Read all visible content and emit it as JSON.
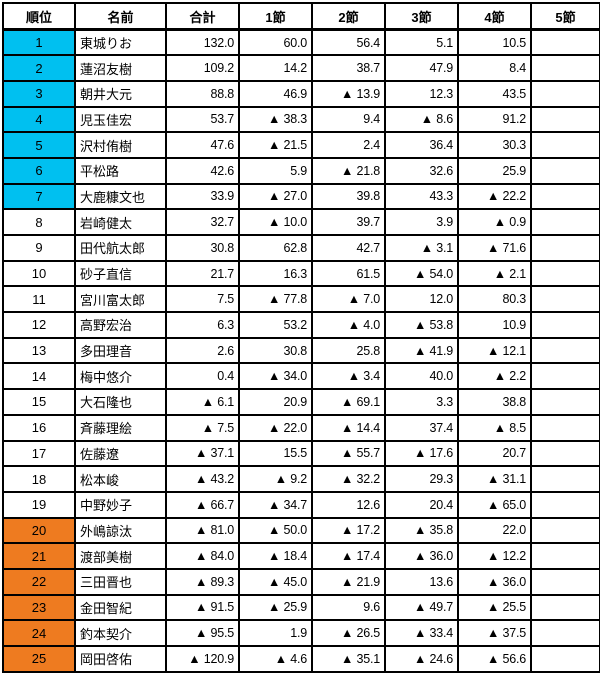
{
  "table": {
    "headers": [
      "順位",
      "名前",
      "合計",
      "1節",
      "2節",
      "3節",
      "4節",
      "5節"
    ],
    "colors": {
      "rank_top_band": "#00C0F0",
      "rank_mid_band": "#FFFFFF",
      "rank_bottom_band": "#EE7B20",
      "grid_border": "#000000",
      "cell_background": "#FFFFFF"
    },
    "negative_marker": "▲",
    "rows": [
      {
        "rank": "1",
        "name": "東城りお",
        "values": [
          "132.0",
          "60.0",
          "56.4",
          "5.1",
          "10.5",
          ""
        ],
        "band": "top"
      },
      {
        "rank": "2",
        "name": "蓮沼友樹",
        "values": [
          "109.2",
          "14.2",
          "38.7",
          "47.9",
          "8.4",
          ""
        ],
        "band": "top"
      },
      {
        "rank": "3",
        "name": "朝井大元",
        "values": [
          "88.8",
          "46.9",
          "▲ 13.9",
          "12.3",
          "43.5",
          ""
        ],
        "band": "top"
      },
      {
        "rank": "4",
        "name": "児玉佳宏",
        "values": [
          "53.7",
          "▲ 38.3",
          "9.4",
          "▲ 8.6",
          "91.2",
          ""
        ],
        "band": "top"
      },
      {
        "rank": "5",
        "name": "沢村侑樹",
        "values": [
          "47.6",
          "▲ 21.5",
          "2.4",
          "36.4",
          "30.3",
          ""
        ],
        "band": "top"
      },
      {
        "rank": "6",
        "name": "平松路",
        "values": [
          "42.6",
          "5.9",
          "▲ 21.8",
          "32.6",
          "25.9",
          ""
        ],
        "band": "top"
      },
      {
        "rank": "7",
        "name": "大鹿糠文也",
        "values": [
          "33.9",
          "▲ 27.0",
          "39.8",
          "43.3",
          "▲ 22.2",
          ""
        ],
        "band": "top"
      },
      {
        "rank": "8",
        "name": "岩崎健太",
        "values": [
          "32.7",
          "▲ 10.0",
          "39.7",
          "3.9",
          "▲ 0.9",
          ""
        ],
        "band": "mid"
      },
      {
        "rank": "9",
        "name": "田代航太郎",
        "values": [
          "30.8",
          "62.8",
          "42.7",
          "▲ 3.1",
          "▲ 71.6",
          ""
        ],
        "band": "mid"
      },
      {
        "rank": "10",
        "name": "砂子直信",
        "values": [
          "21.7",
          "16.3",
          "61.5",
          "▲ 54.0",
          "▲ 2.1",
          ""
        ],
        "band": "mid"
      },
      {
        "rank": "11",
        "name": "宮川富太郎",
        "values": [
          "7.5",
          "▲ 77.8",
          "▲ 7.0",
          "12.0",
          "80.3",
          ""
        ],
        "band": "mid"
      },
      {
        "rank": "12",
        "name": "高野宏治",
        "values": [
          "6.3",
          "53.2",
          "▲ 4.0",
          "▲ 53.8",
          "10.9",
          ""
        ],
        "band": "mid"
      },
      {
        "rank": "13",
        "name": "多田理音",
        "values": [
          "2.6",
          "30.8",
          "25.8",
          "▲ 41.9",
          "▲ 12.1",
          ""
        ],
        "band": "mid"
      },
      {
        "rank": "14",
        "name": "梅中悠介",
        "values": [
          "0.4",
          "▲ 34.0",
          "▲ 3.4",
          "40.0",
          "▲ 2.2",
          ""
        ],
        "band": "mid"
      },
      {
        "rank": "15",
        "name": "大石隆也",
        "values": [
          "▲ 6.1",
          "20.9",
          "▲ 69.1",
          "3.3",
          "38.8",
          ""
        ],
        "band": "mid"
      },
      {
        "rank": "16",
        "name": "斉藤理絵",
        "values": [
          "▲ 7.5",
          "▲ 22.0",
          "▲ 14.4",
          "37.4",
          "▲ 8.5",
          ""
        ],
        "band": "mid"
      },
      {
        "rank": "17",
        "name": "佐藤遼",
        "values": [
          "▲ 37.1",
          "15.5",
          "▲ 55.7",
          "▲ 17.6",
          "20.7",
          ""
        ],
        "band": "mid"
      },
      {
        "rank": "18",
        "name": "松本峻",
        "values": [
          "▲ 43.2",
          "▲ 9.2",
          "▲ 32.2",
          "29.3",
          "▲ 31.1",
          ""
        ],
        "band": "mid"
      },
      {
        "rank": "19",
        "name": "中野妙子",
        "values": [
          "▲ 66.7",
          "▲ 34.7",
          "12.6",
          "20.4",
          "▲ 65.0",
          ""
        ],
        "band": "mid"
      },
      {
        "rank": "20",
        "name": "外嶋諒汰",
        "values": [
          "▲ 81.0",
          "▲ 50.0",
          "▲ 17.2",
          "▲ 35.8",
          "22.0",
          ""
        ],
        "band": "bottom"
      },
      {
        "rank": "21",
        "name": "渡部美樹",
        "values": [
          "▲ 84.0",
          "▲ 18.4",
          "▲ 17.4",
          "▲ 36.0",
          "▲ 12.2",
          ""
        ],
        "band": "bottom"
      },
      {
        "rank": "22",
        "name": "三田晋也",
        "values": [
          "▲ 89.3",
          "▲ 45.0",
          "▲ 21.9",
          "13.6",
          "▲ 36.0",
          ""
        ],
        "band": "bottom"
      },
      {
        "rank": "23",
        "name": "金田智紀",
        "values": [
          "▲ 91.5",
          "▲ 25.9",
          "9.6",
          "▲ 49.7",
          "▲ 25.5",
          ""
        ],
        "band": "bottom"
      },
      {
        "rank": "24",
        "name": "釣本契介",
        "values": [
          "▲ 95.5",
          "1.9",
          "▲ 26.5",
          "▲ 33.4",
          "▲ 37.5",
          ""
        ],
        "band": "bottom"
      },
      {
        "rank": "25",
        "name": "岡田啓佑",
        "values": [
          "▲ 120.9",
          "▲ 4.6",
          "▲ 35.1",
          "▲ 24.6",
          "▲ 56.6",
          ""
        ],
        "band": "bottom"
      }
    ]
  }
}
